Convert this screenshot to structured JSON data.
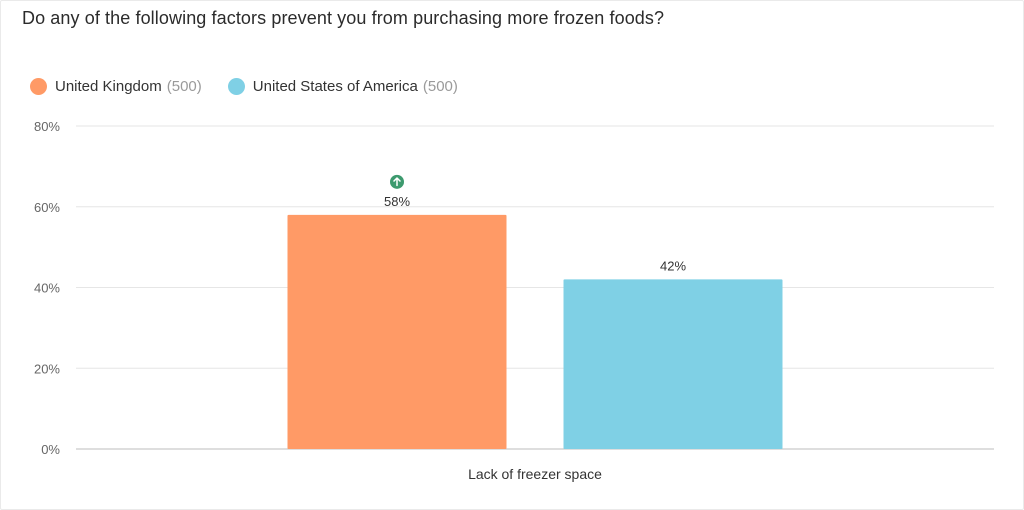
{
  "title": "Do any of the following factors prevent you from purchasing more frozen foods?",
  "legend": [
    {
      "label": "United Kingdom",
      "count": "(500)",
      "color": "#FF9A66"
    },
    {
      "label": "United States of America",
      "count": "(500)",
      "color": "#7FD0E5"
    }
  ],
  "colors": {
    "grid": "#e6e6e6",
    "axis": "#bdbdbd",
    "tick_text": "#666666",
    "up_badge": "#3d9a6e"
  },
  "icons": {
    "increase": "arrow-up-circle-icon"
  },
  "chart_data": {
    "type": "bar",
    "categories": [
      "Lack of freezer space"
    ],
    "series": [
      {
        "name": "United Kingdom",
        "values": [
          58
        ],
        "value_labels": [
          "58%"
        ],
        "color": "#FF9A66",
        "significant_increase": true
      },
      {
        "name": "United States of America",
        "values": [
          42
        ],
        "value_labels": [
          "42%"
        ],
        "color": "#7FD0E5",
        "significant_increase": false
      }
    ],
    "ylim": [
      0,
      80
    ],
    "yticks": [
      0,
      20,
      40,
      60,
      80
    ],
    "ytick_labels": [
      "0%",
      "20%",
      "40%",
      "60%",
      "80%"
    ],
    "grid": true,
    "legend_position": "top-left"
  }
}
